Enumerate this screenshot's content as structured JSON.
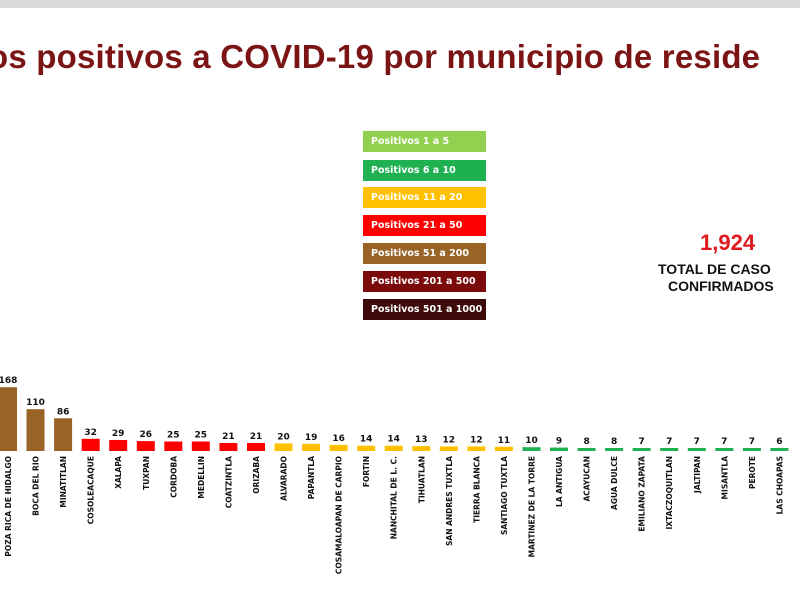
{
  "title": "os positivos a COVID-19  por municipio de reside",
  "legend": [
    {
      "label": "Positivos 1 a 5",
      "color": "#92d050",
      "text_color": "#ffffff"
    },
    {
      "label": "Positivos 6 a 10",
      "color": "#1fb052",
      "text_color": "#ffffff"
    },
    {
      "label": "Positivos 11 a 20",
      "color": "#ffc000",
      "text_color": "#ffffff"
    },
    {
      "label": "Positivos 21 a 50",
      "color": "#ff0000",
      "text_color": "#ffffff"
    },
    {
      "label": "Positivos 51 a 200",
      "color": "#996326",
      "text_color": "#ffffff"
    },
    {
      "label": "Positivos 201 a 500",
      "color": "#7b0a0a",
      "text_color": "#ffffff"
    },
    {
      "label": "Positivos 501 a 1000",
      "color": "#3d0a0a",
      "text_color": "#ffffff"
    }
  ],
  "total": {
    "value": "1,924",
    "label_line1": "TOTAL DE CASO",
    "label_line2": "CONFIRMADOS"
  },
  "chart_data": {
    "type": "bar",
    "title": "os positivos a COVID-19  por municipio de reside",
    "categories": [
      "POZA RICA DE HIDALGO",
      "BOCA DEL RIO",
      "MINATITLAN",
      "COSOLEACAQUE",
      "XALAPA",
      "TUXPAN",
      "CORDOBA",
      "MEDELLIN",
      "COATZINTLA",
      "ORIZABA",
      "ALVARADO",
      "PAPANTLA",
      "COSAMALOAPAN DE CARPIO",
      "FORTIN",
      "NANCHITAL DE L. C.",
      "TIHUATLAN",
      "SAN ANDRES TUXTLA",
      "TIERRA BLANCA",
      "SANTIAGO TUXTLA",
      "MARTINEZ DE LA TORRE",
      "LA ANTIGUA",
      "ACAYUCAN",
      "AGUA DULCE",
      "EMILIANO ZAPATA",
      "IXTACZOQUITLAN",
      "JALTIPAN",
      "MISANTLA",
      "PEROTE",
      "LAS CHOAPAS"
    ],
    "values": [
      168,
      110,
      86,
      32,
      29,
      26,
      25,
      25,
      21,
      21,
      20,
      19,
      16,
      14,
      14,
      13,
      12,
      12,
      11,
      10,
      9,
      8,
      8,
      7,
      7,
      7,
      7,
      7,
      6
    ],
    "colors": [
      "#996326",
      "#996326",
      "#996326",
      "#ff0000",
      "#ff0000",
      "#ff0000",
      "#ff0000",
      "#ff0000",
      "#ff0000",
      "#ff0000",
      "#ffc000",
      "#ffc000",
      "#ffc000",
      "#ffc000",
      "#ffc000",
      "#ffc000",
      "#ffc000",
      "#ffc000",
      "#ffc000",
      "#1fb052",
      "#1fb052",
      "#1fb052",
      "#1fb052",
      "#1fb052",
      "#1fb052",
      "#1fb052",
      "#1fb052",
      "#1fb052",
      "#1fb052"
    ],
    "data_labels": [
      "168",
      "110",
      "86",
      "32",
      "29",
      "26",
      "25",
      "25",
      "21",
      "21",
      "20",
      "19",
      "16",
      "14",
      "14",
      "13",
      "12",
      "12",
      "11",
      "10",
      "9",
      "8",
      "8",
      "7",
      "7",
      "7",
      "7",
      "7",
      "6"
    ],
    "xlabel": "",
    "ylabel": "",
    "grid": false,
    "legend_position": "center"
  }
}
